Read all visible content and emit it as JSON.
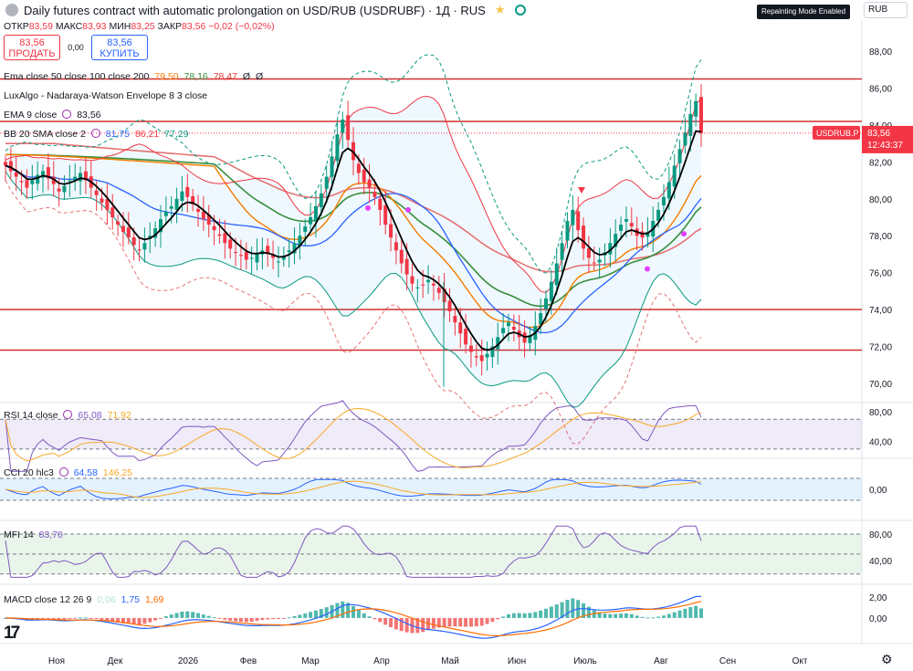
{
  "header": {
    "title": "Daily futures contract with automatic prolongation on USD/RUB (USDRUBF) · 1Д · RUS",
    "repainting": "Repainting Mode Enabled",
    "currency": "RUB"
  },
  "ohlc": {
    "o_label": "ОТКР",
    "o": "83,59",
    "h_label": "МАКС",
    "h": "83,93",
    "l_label": "МИН",
    "l": "83,25",
    "c_label": "ЗАКР",
    "c": "83,56",
    "chg": "−0,02 (−0,02%)"
  },
  "trade": {
    "sell_price": "83,56",
    "sell_label": "ПРОДАТЬ",
    "spread": "0,00",
    "buy_price": "83,56",
    "buy_label": "КУПИТЬ"
  },
  "legends": {
    "ema": {
      "label": "Ema close 50 close 100 close 200",
      "v1": "79,50",
      "v2": "78,16",
      "v3": "78,47",
      "v4": "Ø",
      "v5": "Ø"
    },
    "lux": {
      "label": "LuxAlgo - Nadaraya-Watson Envelope 8 3 close"
    },
    "ema9": {
      "label": "EMA 9 close",
      "v": "83,56"
    },
    "bb": {
      "label": "BB 20 SMA close 2",
      "v1": "81,75",
      "v2": "86,21",
      "v3": "77,29"
    },
    "rsi": {
      "label": "RSI 14 close",
      "v1": "65,08",
      "v2": "71,92"
    },
    "cci": {
      "label": "CCI 20 hlc3",
      "v1": "64,58",
      "v2": "146,25"
    },
    "mfi": {
      "label": "MFI 14",
      "v1": "83,70"
    },
    "macd": {
      "label": "MACD close 12 26 9",
      "v1": "0,06",
      "v2": "1,75",
      "v3": "1,69"
    }
  },
  "price_badge": {
    "symbol": "USDRUB.P",
    "price": "83,56",
    "countdown": "12:43:37"
  },
  "colors": {
    "up": "#089981",
    "down": "#f23645",
    "ema9": "#000000",
    "ema50": "#f57c00",
    "ema100": "#388e3c",
    "ema200": "#e57373",
    "bb_basis": "#2962ff",
    "bb_band": "#f23645",
    "nw_band": "#e57373",
    "rsi": "#7e57c2",
    "rsi_ma": "#f9a825",
    "macd": "#2962ff",
    "signal": "#ff6d00"
  },
  "chart_data": {
    "type": "candlestick",
    "x_axis": [
      "Ноя",
      "Дек",
      "2026",
      "Фев",
      "Мар",
      "Апр",
      "Май",
      "Июн",
      "Июль",
      "Авг",
      "Сен",
      "Окт"
    ],
    "price_axis": {
      "ticks": [
        "88,00",
        "86,00",
        "84,00",
        "82,00",
        "80,00",
        "78,00",
        "76,00",
        "74,00",
        "72,00",
        "70,00"
      ],
      "range": [
        69,
        89
      ]
    },
    "horizontal_levels": [
      86.5,
      84.2,
      74.0,
      71.8
    ],
    "close_series": [
      81.8,
      81.5,
      81.2,
      80.9,
      80.6,
      81.0,
      81.3,
      81.5,
      81.1,
      80.8,
      80.4,
      80.7,
      81.0,
      81.2,
      81.4,
      81.0,
      80.6,
      80.2,
      79.8,
      79.4,
      79.0,
      78.6,
      78.2,
      77.9,
      77.5,
      77.2,
      77.6,
      78.0,
      78.4,
      78.9,
      79.3,
      79.6,
      80.0,
      80.4,
      80.1,
      79.7,
      79.3,
      78.9,
      78.6,
      78.3,
      78.0,
      77.6,
      77.3,
      77.1,
      76.9,
      76.7,
      76.8,
      77.0,
      77.2,
      77.0,
      76.8,
      76.6,
      76.9,
      77.2,
      77.6,
      78.0,
      78.5,
      79.0,
      79.6,
      80.3,
      81.2,
      82.3,
      83.5,
      84.3,
      83.2,
      82.1,
      81.4,
      80.9,
      80.6,
      80.1,
      79.4,
      78.6,
      77.9,
      77.2,
      76.5,
      75.9,
      75.4,
      75.2,
      75.3,
      75.6,
      75.3,
      74.9,
      74.4,
      73.9,
      73.3,
      72.7,
      72.1,
      71.7,
      71.4,
      71.2,
      71.6,
      72.0,
      72.5,
      73.0,
      73.3,
      72.9,
      72.5,
      72.2,
      72.6,
      73.1,
      73.8,
      74.6,
      75.5,
      76.5,
      77.6,
      78.8,
      79.4,
      78.3,
      77.3,
      76.8,
      76.5,
      76.7,
      77.1,
      77.6,
      78.1,
      78.6,
      78.9,
      78.5,
      78.0,
      77.9,
      78.2,
      78.8,
      79.4,
      80.1,
      80.9,
      81.8,
      82.7,
      83.6,
      84.6,
      85.3,
      83.56
    ],
    "rsi": {
      "ticks": [
        "80,00",
        "40,00"
      ],
      "range": [
        20,
        90
      ],
      "bands": [
        70,
        30
      ],
      "value": 65.08,
      "ma": 71.92
    },
    "cci": {
      "ticks": [
        "0,00"
      ],
      "range": [
        -250,
        250
      ],
      "bands": [
        100,
        -100
      ],
      "value": 64.58,
      "ma": 146.25
    },
    "mfi": {
      "ticks": [
        "80,00",
        "40,00"
      ],
      "range": [
        10,
        95
      ],
      "bands": [
        80,
        50,
        20
      ],
      "value": 83.7
    },
    "macd": {
      "ticks": [
        "2,00",
        "0,00"
      ],
      "range": [
        -2.2,
        2.8
      ],
      "macd": 1.75,
      "signal": 1.69,
      "hist": 0.06
    }
  }
}
